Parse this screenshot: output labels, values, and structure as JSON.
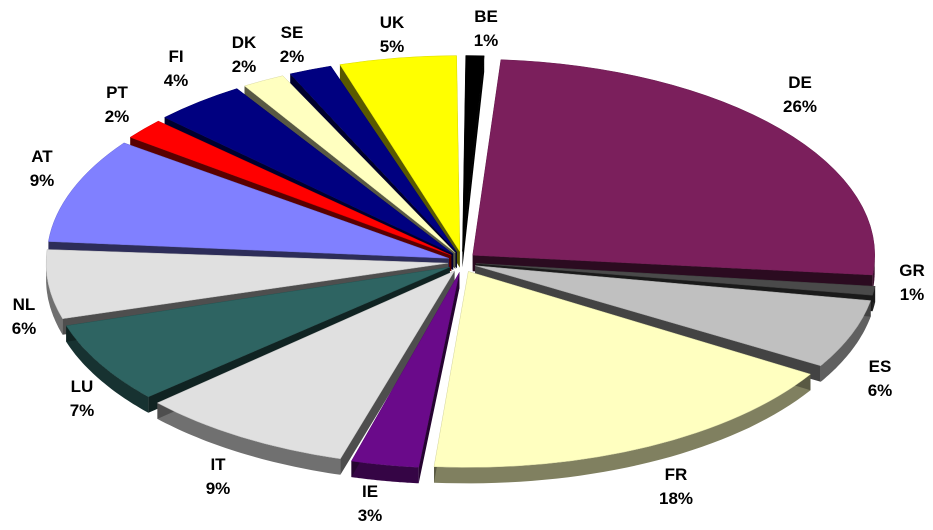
{
  "chart_data": {
    "type": "pie",
    "style": "3d-exploded",
    "slices": [
      {
        "label": "BE",
        "pct_text": "1%",
        "value": 1,
        "color": "#000000"
      },
      {
        "label": "DE",
        "pct_text": "26%",
        "value": 26,
        "color": "#7b1f5c"
      },
      {
        "label": "GR",
        "pct_text": "1%",
        "value": 1,
        "color": "#4a4a4a"
      },
      {
        "label": "ES",
        "pct_text": "6%",
        "value": 6,
        "color": "#c0c0c0"
      },
      {
        "label": "FR",
        "pct_text": "18%",
        "value": 18,
        "color": "#ffffc0"
      },
      {
        "label": "IE",
        "pct_text": "3%",
        "value": 3,
        "color": "#6a0a8a"
      },
      {
        "label": "IT",
        "pct_text": "9%",
        "value": 9,
        "color": "#e0e0e0"
      },
      {
        "label": "LU",
        "pct_text": "7%",
        "value": 7,
        "color": "#2e6462"
      },
      {
        "label": "NL",
        "pct_text": "6%",
        "value": 6,
        "color": "#e0e0e0"
      },
      {
        "label": "AT",
        "pct_text": "9%",
        "value": 9,
        "color": "#8080ff"
      },
      {
        "label": "PT",
        "pct_text": "2%",
        "value": 2,
        "color": "#ff0000"
      },
      {
        "label": "FI",
        "pct_text": "4%",
        "value": 4,
        "color": "#000080"
      },
      {
        "label": "DK",
        "pct_text": "2%",
        "value": 2,
        "color": "#ffffc0"
      },
      {
        "label": "SE",
        "pct_text": "2%",
        "value": 2,
        "color": "#000080"
      },
      {
        "label": "UK",
        "pct_text": "5%",
        "value": 5,
        "color": "#ffff00"
      }
    ]
  }
}
